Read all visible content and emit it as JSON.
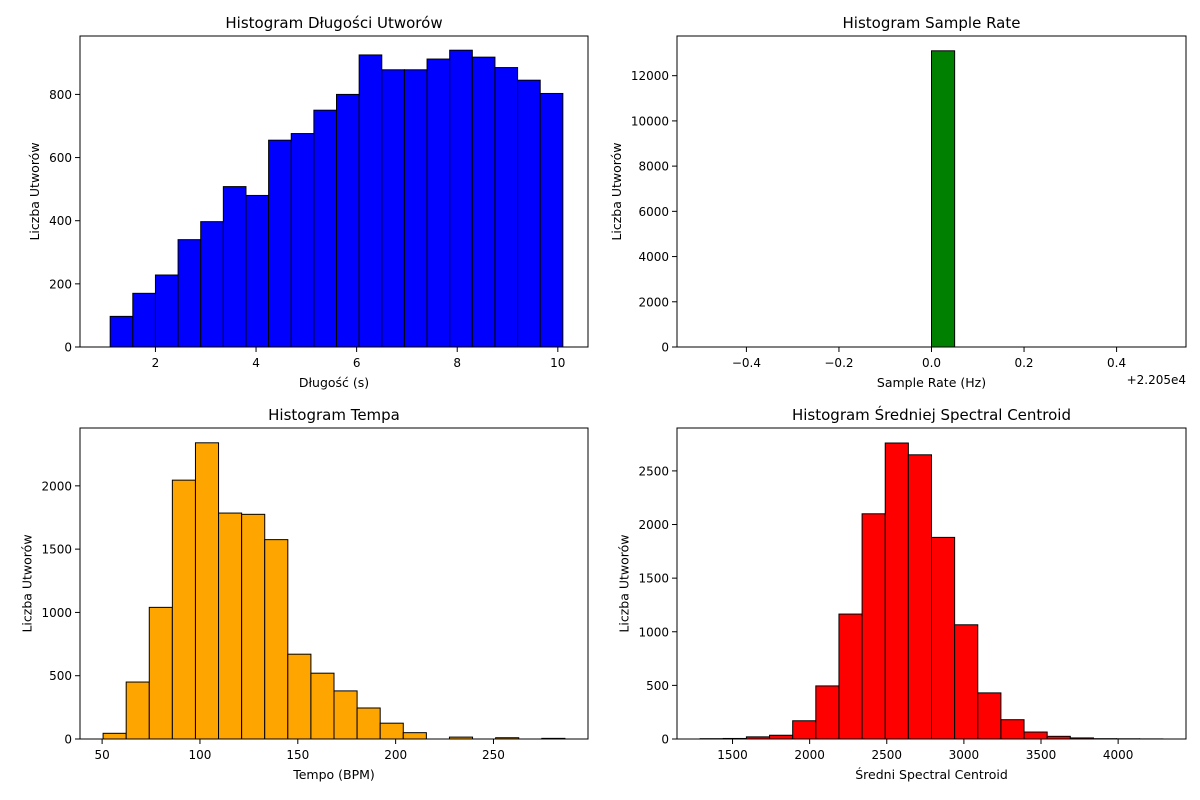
{
  "figure": {
    "background": "#ffffff",
    "edge_color": "#000000"
  },
  "chart_data": [
    {
      "type": "bar",
      "histogram": true,
      "title": "Histogram Długości Utworów",
      "xlabel": "Długość (s)",
      "ylabel": "Liczba Utworów",
      "color": "#0000ff",
      "bin_edges": [
        1.1,
        1.55,
        2.0,
        2.45,
        2.9,
        3.35,
        3.8,
        4.25,
        4.7,
        5.15,
        5.6,
        6.05,
        6.5,
        6.95,
        7.4,
        7.85,
        8.3,
        8.75,
        9.2,
        9.65,
        10.1
      ],
      "values": [
        97,
        170,
        228,
        340,
        397,
        508,
        480,
        655,
        676,
        750,
        800,
        925,
        878,
        878,
        912,
        940,
        918,
        885,
        845,
        803
      ],
      "xlim": [
        0.5,
        10.6
      ],
      "ylim": [
        0,
        985
      ],
      "xticks": [
        2,
        4,
        6,
        8,
        10
      ],
      "xtick_labels": [
        "2",
        "4",
        "6",
        "8",
        "10"
      ],
      "yticks": [
        0,
        200,
        400,
        600,
        800
      ],
      "ytick_labels": [
        "0",
        "200",
        "400",
        "600",
        "800"
      ],
      "grid": false
    },
    {
      "type": "bar",
      "histogram": true,
      "title": "Histogram Sample Rate",
      "xlabel": "Sample Rate (Hz)",
      "ylabel": "Liczba Utworów",
      "color": "#008000",
      "bin_edges": [
        -0.5,
        -0.45,
        -0.4,
        -0.35,
        -0.3,
        -0.25,
        -0.2,
        -0.15,
        -0.1,
        -0.05,
        0.0,
        0.05,
        0.1,
        0.15,
        0.2,
        0.25,
        0.3,
        0.35,
        0.4,
        0.45,
        0.5
      ],
      "values": [
        0,
        0,
        0,
        0,
        0,
        0,
        0,
        0,
        0,
        0,
        13100,
        0,
        0,
        0,
        0,
        0,
        0,
        0,
        0,
        0
      ],
      "xlim": [
        -0.55,
        0.55
      ],
      "ylim": [
        0,
        13755
      ],
      "xticks": [
        -0.4,
        -0.2,
        0.0,
        0.2,
        0.4
      ],
      "xtick_labels": [
        "−0.4",
        "−0.2",
        "0.0",
        "0.2",
        "0.4"
      ],
      "yticks": [
        0,
        2000,
        4000,
        6000,
        8000,
        10000,
        12000
      ],
      "ytick_labels": [
        "0",
        "2000",
        "4000",
        "6000",
        "8000",
        "10000",
        "12000"
      ],
      "offset_label": "+2.205e4",
      "grid": false
    },
    {
      "type": "bar",
      "histogram": true,
      "title": "Histogram Tempa",
      "xlabel": "Tempo (BPM)",
      "ylabel": "Liczba Utworów",
      "color": "#ffa500",
      "bin_edges": [
        50.5,
        62.3,
        74.1,
        85.9,
        97.7,
        109.5,
        121.3,
        133.1,
        144.9,
        156.7,
        168.5,
        180.3,
        192.1,
        203.9,
        215.7,
        227.5,
        239.3,
        251.1,
        262.9,
        274.7,
        286.5
      ],
      "values": [
        45,
        450,
        1040,
        2045,
        2340,
        1785,
        1775,
        1575,
        670,
        520,
        380,
        245,
        125,
        50,
        0,
        15,
        0,
        10,
        0,
        5
      ],
      "xlim": [
        38.7,
        298.3
      ],
      "ylim": [
        0,
        2457
      ],
      "xticks": [
        50,
        100,
        150,
        200,
        250
      ],
      "xtick_labels": [
        "50",
        "100",
        "150",
        "200",
        "250"
      ],
      "yticks": [
        0,
        500,
        1000,
        1500,
        2000
      ],
      "ytick_labels": [
        "0",
        "500",
        "1000",
        "1500",
        "2000"
      ],
      "grid": false
    },
    {
      "type": "bar",
      "histogram": true,
      "title": "Histogram Średniej Spectral Centroid",
      "xlabel": "Średni Spectral Centroid",
      "ylabel": "Liczba Utworów",
      "color": "#ff0000",
      "bin_edges": [
        1290,
        1440,
        1590,
        1740,
        1890,
        2040,
        2190,
        2340,
        2490,
        2640,
        2790,
        2940,
        3090,
        3240,
        3390,
        3540,
        3690,
        3840,
        3990,
        4140,
        4290
      ],
      "values": [
        3,
        5,
        20,
        35,
        170,
        495,
        1165,
        2100,
        2760,
        2650,
        1880,
        1065,
        430,
        180,
        65,
        25,
        10,
        3,
        2,
        1
      ],
      "xlim": [
        1140,
        4440
      ],
      "ylim": [
        0,
        2900
      ],
      "xticks": [
        1500,
        2000,
        2500,
        3000,
        3500,
        4000
      ],
      "xtick_labels": [
        "1500",
        "2000",
        "2500",
        "3000",
        "3500",
        "4000"
      ],
      "yticks": [
        0,
        500,
        1000,
        1500,
        2000,
        2500
      ],
      "ytick_labels": [
        "0",
        "500",
        "1000",
        "1500",
        "2000",
        "2500"
      ],
      "grid": false
    }
  ]
}
